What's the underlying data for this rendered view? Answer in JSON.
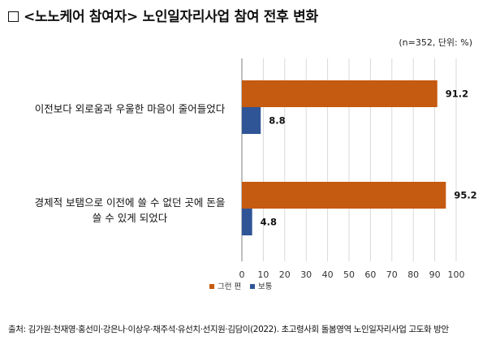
{
  "header": {
    "title": "<노노케어 참여자> 노인일자리사업 참여 전후 변화",
    "unit_note": "(n=352, 단위: %)"
  },
  "footer": {
    "source": "출처: 김가원·천재영·홍선미·강은나·이상우·채주석·유선치·선지원·김담이(2022). 초고령사회 돌봄영역 노인일자리사업 고도화 방안"
  },
  "colors": {
    "series1": "#c55a11",
    "series2": "#2f5597",
    "grid": "#d9d9d9",
    "axis": "#7f7f7f"
  },
  "chart_data": {
    "type": "bar",
    "orientation": "horizontal",
    "categories": [
      [
        "이전보다 외로움과 우울한 마음이 줄어들었다"
      ],
      [
        "경제적 보탬으로 이전에 쓸 수 없던 곳에 돈을",
        "쓸 수 있게 되었다"
      ]
    ],
    "series": [
      {
        "name": "그런 편",
        "values": [
          91.2,
          95.2
        ]
      },
      {
        "name": "보통",
        "values": [
          8.8,
          4.8
        ]
      }
    ],
    "xlim": [
      0,
      100
    ],
    "xticks": [
      0,
      10,
      20,
      30,
      40,
      50,
      60,
      70,
      80,
      90,
      100
    ],
    "grid": true,
    "legend": "bottom-left"
  }
}
